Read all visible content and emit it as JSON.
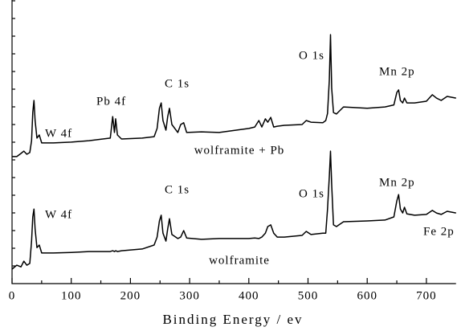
{
  "chart_data": {
    "type": "line",
    "x_label": "Binding Energy / ev",
    "x": [
      0,
      8,
      15,
      20,
      25,
      30,
      33,
      35,
      37,
      39,
      42,
      46,
      50,
      70,
      100,
      130,
      166,
      170,
      173,
      175,
      178,
      185,
      220,
      240,
      245,
      249,
      252,
      255,
      260,
      263,
      266,
      270,
      280,
      285,
      290,
      295,
      320,
      350,
      400,
      410,
      417,
      422,
      428,
      432,
      437,
      442,
      448,
      460,
      490,
      497,
      505,
      525,
      530,
      533,
      536,
      538,
      540,
      543,
      548,
      560,
      600,
      630,
      645,
      650,
      653,
      656,
      660,
      663,
      667,
      680,
      700,
      710,
      717,
      725,
      735,
      750
    ],
    "series": [
      {
        "name": "wolframite + Pb",
        "color": "#000000",
        "values": [
          44.8,
          44.8,
          45.9,
          46.7,
          45.6,
          46.2,
          50.4,
          60.3,
          64.6,
          57.5,
          51.3,
          52.4,
          49.6,
          49.6,
          49.9,
          50.4,
          51.3,
          58.9,
          53.3,
          58.1,
          52.4,
          51.0,
          51.3,
          51.8,
          54.7,
          61.8,
          63.7,
          57.5,
          54.1,
          58.9,
          61.8,
          56.1,
          53.3,
          56.1,
          56.7,
          53.3,
          53.5,
          53.3,
          54.7,
          55.2,
          57.5,
          55.2,
          58.1,
          56.9,
          58.6,
          55.2,
          55.5,
          55.8,
          56.1,
          57.5,
          56.9,
          56.7,
          57.5,
          60.0,
          71.7,
          87.8,
          68.8,
          60.3,
          59.8,
          62.3,
          61.8,
          62.3,
          63.0,
          67.4,
          68.3,
          64.6,
          63.7,
          65.4,
          63.7,
          63.7,
          64.3,
          66.6,
          65.4,
          64.6,
          66.0,
          65.4
        ]
      },
      {
        "name": "wolframite",
        "color": "#000000",
        "values": [
          5.1,
          6.5,
          5.9,
          7.9,
          6.5,
          7.1,
          15.0,
          23.5,
          26.3,
          19.3,
          12.7,
          13.6,
          10.8,
          10.8,
          11.0,
          11.3,
          11.3,
          11.6,
          11.3,
          11.6,
          11.3,
          11.6,
          12.2,
          13.6,
          16.4,
          22.1,
          24.1,
          17.8,
          15.0,
          19.3,
          22.9,
          17.3,
          15.9,
          16.4,
          18.7,
          16.1,
          15.6,
          15.9,
          15.9,
          16.1,
          15.9,
          16.4,
          17.8,
          20.1,
          20.7,
          17.8,
          16.4,
          16.4,
          17.0,
          18.4,
          17.3,
          17.8,
          17.8,
          26.3,
          37.7,
          46.7,
          34.8,
          20.7,
          20.1,
          21.8,
          22.1,
          22.4,
          23.5,
          29.2,
          31.4,
          26.3,
          24.9,
          26.9,
          24.6,
          24.1,
          24.4,
          25.8,
          24.9,
          24.4,
          25.5,
          24.9
        ]
      }
    ],
    "annotations": [
      "W 4f",
      "Pb 4f",
      "C 1s",
      "O 1s",
      "Mn 2p",
      "O 1s",
      "Mn 2p",
      "W 4f",
      "C 1s",
      "Fe 2p"
    ],
    "xlim": [
      0,
      750
    ],
    "ylim": [
      0,
      100
    ],
    "xticks": [
      0,
      100,
      200,
      300,
      400,
      500,
      600,
      700
    ]
  }
}
